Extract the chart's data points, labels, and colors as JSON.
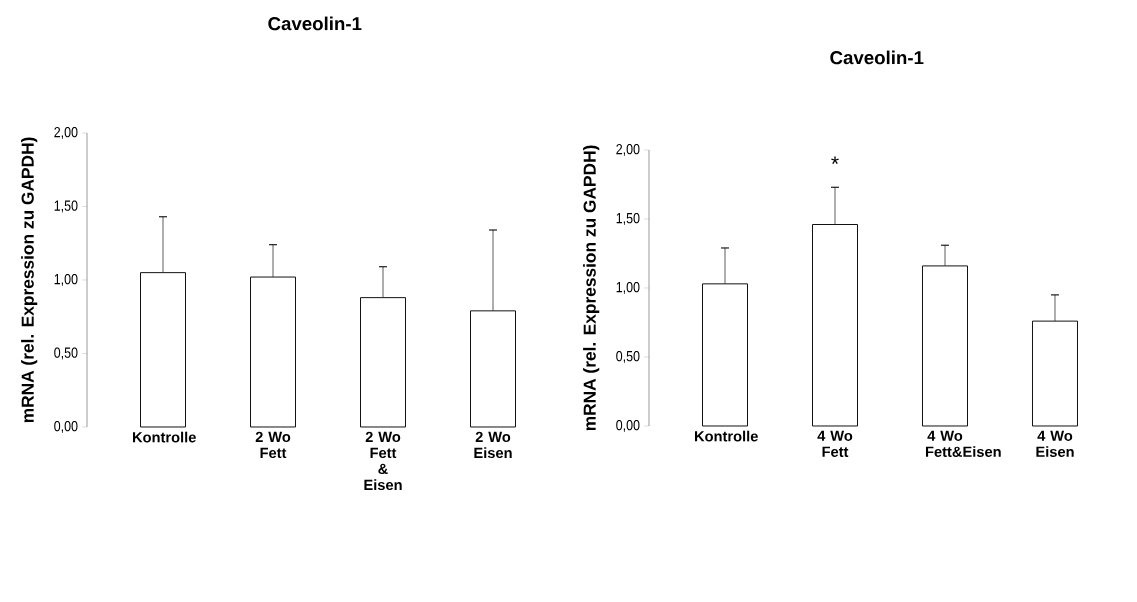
{
  "chart_data": [
    {
      "type": "bar",
      "title": "Caveolin-1",
      "ylabel": "mRNA (rel. Expression zu GAPDH)",
      "categories": [
        "Kontrolle",
        "2 Wo Fett",
        "2 Wo Fett & Eisen",
        "2 Wo Eisen"
      ],
      "values": [
        1.05,
        1.02,
        0.88,
        0.79
      ],
      "color": "#ffffff",
      "errors": [
        [
          1.05,
          1.43
        ],
        [
          1.02,
          1.24
        ],
        [
          0.88,
          1.09
        ],
        [
          0.79,
          1.34
        ]
      ],
      "ylim": [
        0,
        2
      ],
      "yticks": [
        {
          "value": 0,
          "label": "0,00"
        },
        {
          "value": 0.5,
          "label": "0,50"
        },
        {
          "value": 1,
          "label": "1,00"
        },
        {
          "value": 1.5,
          "label": "1,50"
        },
        {
          "value": 2,
          "label": "2,00"
        }
      ],
      "grid": false
    },
    {
      "type": "bar",
      "title": "Caveolin-1",
      "ylabel": "mRNA (rel. Expression zu GAPDH)",
      "categories": [
        "Kontrolle",
        "4 Wo Fett",
        "4 Wo Fett&Eisen",
        "4 Wo Eisen"
      ],
      "values": [
        1.03,
        1.46,
        1.16,
        0.76
      ],
      "color": "#ffffff",
      "errors": [
        [
          1.03,
          1.29
        ],
        [
          1.46,
          1.73
        ],
        [
          1.16,
          1.31
        ],
        [
          0.76,
          0.95
        ]
      ],
      "ylim": [
        0,
        2
      ],
      "yticks": [
        {
          "value": 0,
          "label": "0,00"
        },
        {
          "value": 0.5,
          "label": "0,50"
        },
        {
          "value": 1,
          "label": "1,00"
        },
        {
          "value": 1.5,
          "label": "1,50"
        },
        {
          "value": 2,
          "label": "2,00"
        }
      ],
      "annotations": [
        "*"
      ],
      "grid": false
    }
  ]
}
